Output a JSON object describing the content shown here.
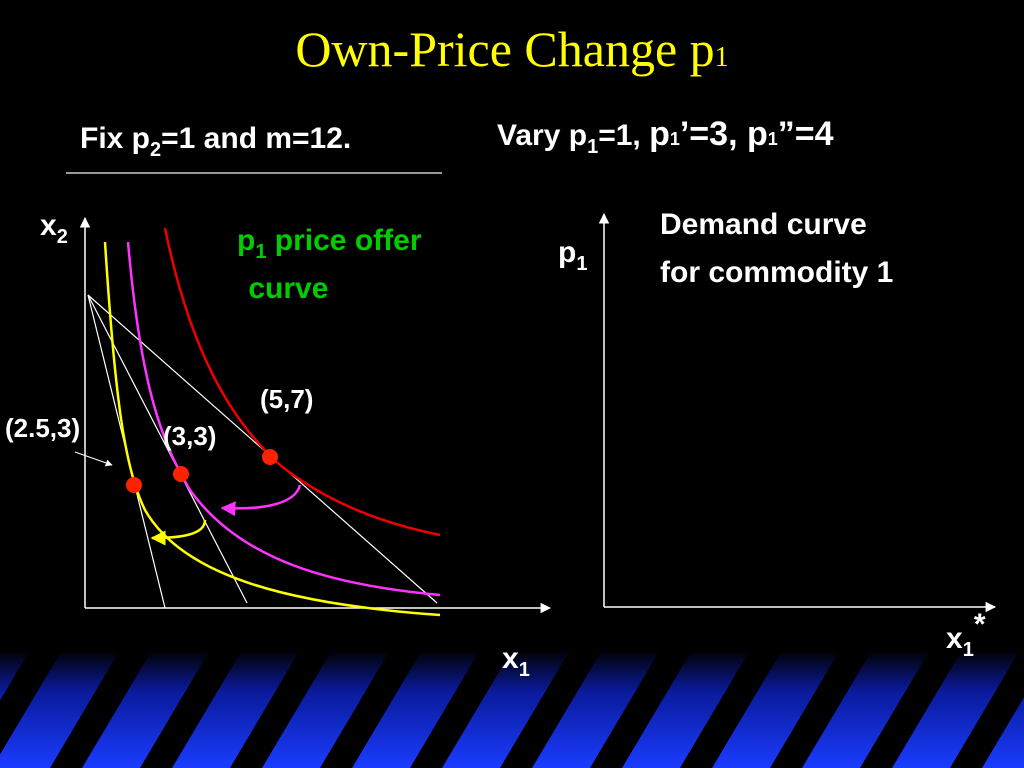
{
  "title": [
    "Own-Price Change p",
    "1"
  ],
  "fixed_note": [
    "Fix p",
    "2",
    "=1 and m=12."
  ],
  "vary_note": [
    "Vary p",
    "1",
    "=1, ",
    "p",
    "1",
    "’=3, ",
    "p",
    "1",
    "”=4"
  ],
  "left_graph": {
    "y_axis_label": [
      "x",
      "2"
    ],
    "x_axis_label": [
      "x",
      "1"
    ],
    "offer_curve_label": [
      [
        "p",
        "1",
        " price offer"
      ],
      " curve"
    ],
    "point_labels": [
      "(2.5,3)",
      "(3,3)",
      "(5,7)"
    ]
  },
  "right_graph": {
    "y_axis_label": [
      "p",
      "1"
    ],
    "x_axis_label": [
      "x",
      "1",
      "*"
    ],
    "caption": [
      "Demand curve",
      "for commodity 1"
    ]
  }
}
